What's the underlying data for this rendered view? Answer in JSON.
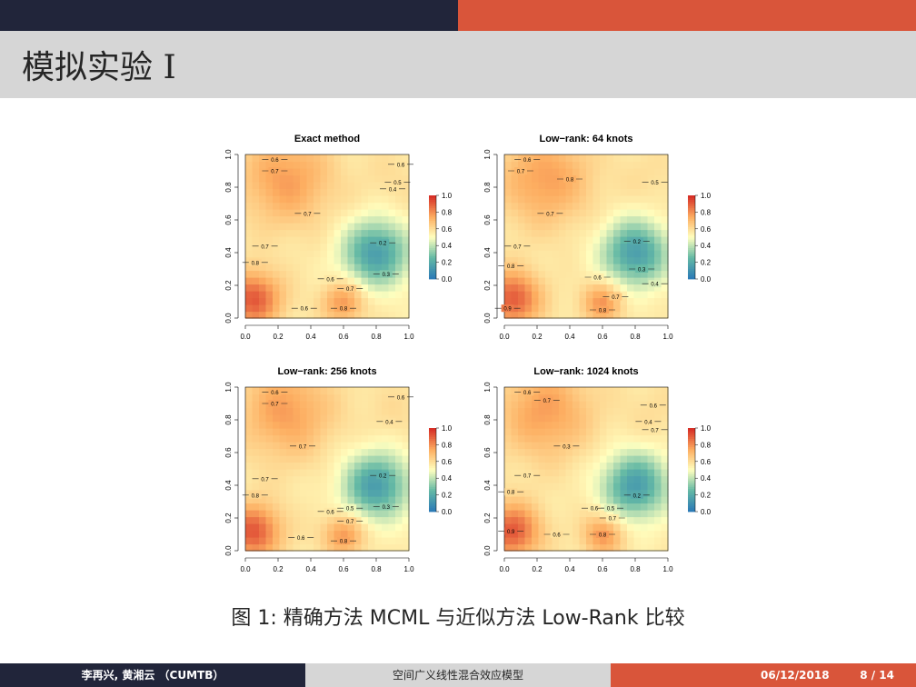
{
  "frame": {
    "title": "模拟实验 I"
  },
  "caption": "图 1: 精确方法 MCML 与近似方法 Low-Rank 比较",
  "footer": {
    "authors": "李再兴, 黄湘云 （CUMTB）",
    "talk_title": "空间广义线性混合效应模型",
    "date": "06/12/2018",
    "page": "8 / 14"
  },
  "chart_data": [
    {
      "type": "heatmap",
      "title": "Exact method",
      "xlim": [
        0,
        1
      ],
      "ylim": [
        0,
        1
      ],
      "xticks": [
        "0.0",
        "0.2",
        "0.4",
        "0.6",
        "0.8",
        "1.0"
      ],
      "yticks": [
        "0.0",
        "0.2",
        "0.4",
        "0.6",
        "0.8",
        "1.0"
      ],
      "colorbar_ticks": [
        "0.0",
        "0.2",
        "0.4",
        "0.6",
        "0.8",
        "1.0"
      ],
      "contour_labels": [
        "0.6",
        "0.7",
        "0.6",
        "0.5",
        "0.4",
        "0.7",
        "0.7",
        "0.8",
        "0.2",
        "0.3",
        "0.6",
        "0.7",
        "0.6",
        "0.8"
      ]
    },
    {
      "type": "heatmap",
      "title": "Low−rank: 64 knots",
      "xlim": [
        0,
        1
      ],
      "ylim": [
        0,
        1
      ],
      "xticks": [
        "0.0",
        "0.2",
        "0.4",
        "0.6",
        "0.8",
        "1.0"
      ],
      "yticks": [
        "0.0",
        "0.2",
        "0.4",
        "0.6",
        "0.8",
        "1.0"
      ],
      "colorbar_ticks": [
        "0.0",
        "0.2",
        "0.4",
        "0.6",
        "0.8",
        "1.0"
      ],
      "contour_labels": [
        "0.6",
        "0.7",
        "0.8",
        "0.5",
        "0.7",
        "0.7",
        "0.2",
        "0.8",
        "0.3",
        "0.6",
        "0.4",
        "0.7",
        "0.9",
        "0.8"
      ]
    },
    {
      "type": "heatmap",
      "title": "Low−rank: 256 knots",
      "xlim": [
        0,
        1
      ],
      "ylim": [
        0,
        1
      ],
      "xticks": [
        "0.0",
        "0.2",
        "0.4",
        "0.6",
        "0.8",
        "1.0"
      ],
      "yticks": [
        "0.0",
        "0.2",
        "0.4",
        "0.6",
        "0.8",
        "1.0"
      ],
      "colorbar_ticks": [
        "0.0",
        "0.2",
        "0.4",
        "0.6",
        "0.8",
        "1.0"
      ],
      "contour_labels": [
        "0.6",
        "0.7",
        "0.6",
        "0.4",
        "0.7",
        "0.7",
        "0.8",
        "0.2",
        "0.3",
        "0.6",
        "0.5",
        "0.7",
        "0.6",
        "0.8"
      ]
    },
    {
      "type": "heatmap",
      "title": "Low−rank: 1024 knots",
      "xlim": [
        0,
        1
      ],
      "ylim": [
        0,
        1
      ],
      "xticks": [
        "0.0",
        "0.2",
        "0.4",
        "0.6",
        "0.8",
        "1.0"
      ],
      "yticks": [
        "0.0",
        "0.2",
        "0.4",
        "0.6",
        "0.8",
        "1.0"
      ],
      "colorbar_ticks": [
        "0.0",
        "0.2",
        "0.4",
        "0.6",
        "0.8",
        "1.0"
      ],
      "contour_labels": [
        "0.6",
        "0.7",
        "0.6",
        "0.4",
        "0.7",
        "0.3",
        "0.7",
        "0.8",
        "0.2",
        "0.6",
        "0.5",
        "0.7",
        "0.6",
        "0.8",
        "0.9"
      ]
    }
  ]
}
